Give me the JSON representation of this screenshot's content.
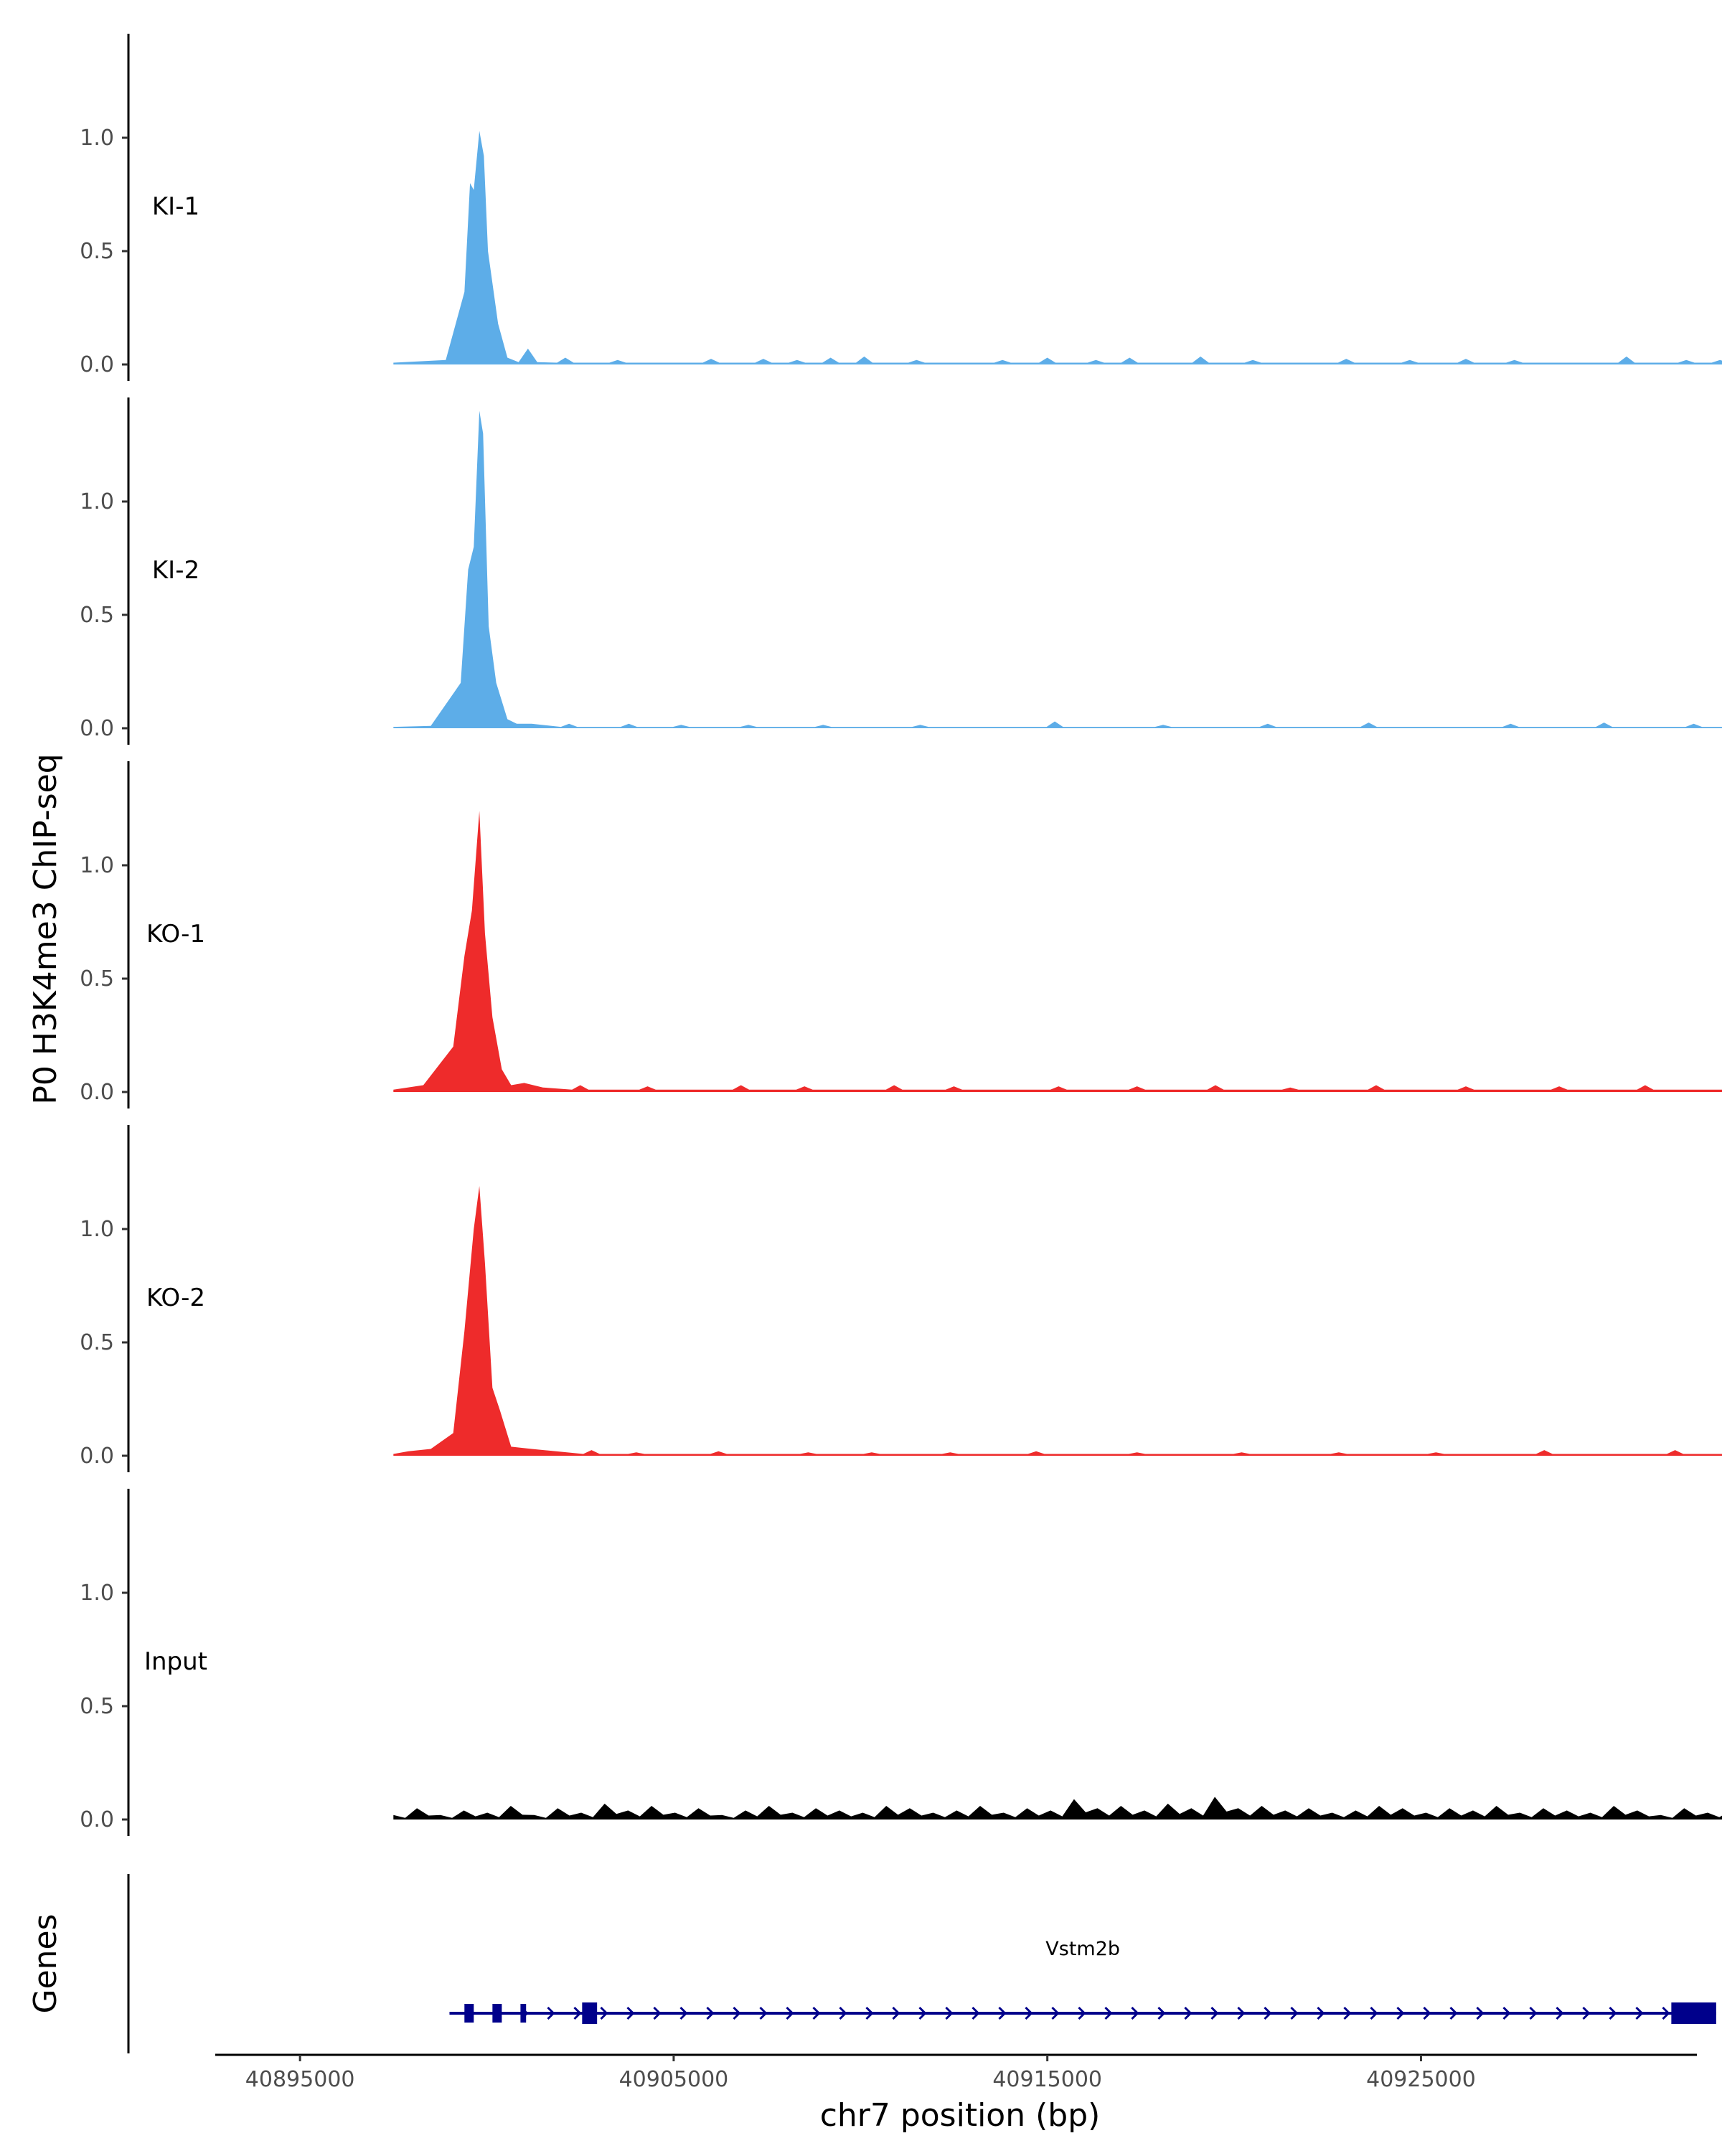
{
  "chart_data": {
    "type": "area",
    "title": "",
    "ylabel": "P0 H3K4me3 ChIP-seq",
    "xlabel": "chr7 position (bp)",
    "xlim": [
      40893000,
      40932000
    ],
    "x_ticks": [
      40895000,
      40905000,
      40915000,
      40925000
    ],
    "x_tick_labels": [
      "40895000",
      "40905000",
      "40915000",
      "40925000"
    ],
    "ylim": [
      0,
      1.45
    ],
    "y_ticks": [
      0.0,
      0.5,
      1.0
    ],
    "y_tick_labels": [
      "0.0",
      "0.5",
      "1.0"
    ],
    "data_range": [
      40897500,
      40933300
    ],
    "tracks": [
      {
        "name": "KI-1",
        "color": "#5dade8",
        "baseline": 0.008,
        "peaks": [
          {
            "x": 40898900,
            "y": 0.02
          },
          {
            "x": 40899400,
            "y": 0.32
          },
          {
            "x": 40899550,
            "y": 0.8
          },
          {
            "x": 40899650,
            "y": 0.77
          },
          {
            "x": 40899800,
            "y": 1.03
          },
          {
            "x": 40899920,
            "y": 0.92
          },
          {
            "x": 40900030,
            "y": 0.5
          },
          {
            "x": 40900300,
            "y": 0.18
          },
          {
            "x": 40900550,
            "y": 0.03
          },
          {
            "x": 40900850,
            "y": 0.01
          },
          {
            "x": 40901100,
            "y": 0.07
          },
          {
            "x": 40901350,
            "y": 0.01
          }
        ],
        "blips": [
          {
            "x": 40902100,
            "y": 0.03
          },
          {
            "x": 40903500,
            "y": 0.02
          },
          {
            "x": 40906000,
            "y": 0.025
          },
          {
            "x": 40907400,
            "y": 0.025
          },
          {
            "x": 40908300,
            "y": 0.02
          },
          {
            "x": 40909200,
            "y": 0.03
          },
          {
            "x": 40910100,
            "y": 0.035
          },
          {
            "x": 40911500,
            "y": 0.02
          },
          {
            "x": 40913800,
            "y": 0.02
          },
          {
            "x": 40915000,
            "y": 0.03
          },
          {
            "x": 40916300,
            "y": 0.02
          },
          {
            "x": 40917200,
            "y": 0.03
          },
          {
            "x": 40919100,
            "y": 0.035
          },
          {
            "x": 40920500,
            "y": 0.02
          },
          {
            "x": 40923000,
            "y": 0.025
          },
          {
            "x": 40924700,
            "y": 0.02
          },
          {
            "x": 40926200,
            "y": 0.025
          },
          {
            "x": 40927500,
            "y": 0.02
          },
          {
            "x": 40930500,
            "y": 0.035
          },
          {
            "x": 40932100,
            "y": 0.02
          },
          {
            "x": 40933000,
            "y": 0.02
          }
        ]
      },
      {
        "name": "KI-2",
        "color": "#5dade8",
        "baseline": 0.006,
        "peaks": [
          {
            "x": 40898500,
            "y": 0.01
          },
          {
            "x": 40899300,
            "y": 0.2
          },
          {
            "x": 40899500,
            "y": 0.7
          },
          {
            "x": 40899650,
            "y": 0.8
          },
          {
            "x": 40899800,
            "y": 1.4
          },
          {
            "x": 40899900,
            "y": 1.3
          },
          {
            "x": 40900050,
            "y": 0.45
          },
          {
            "x": 40900250,
            "y": 0.2
          },
          {
            "x": 40900550,
            "y": 0.04
          },
          {
            "x": 40900800,
            "y": 0.02
          },
          {
            "x": 40901200,
            "y": 0.02
          }
        ],
        "blips": [
          {
            "x": 40902200,
            "y": 0.02
          },
          {
            "x": 40903800,
            "y": 0.02
          },
          {
            "x": 40905200,
            "y": 0.015
          },
          {
            "x": 40907000,
            "y": 0.015
          },
          {
            "x": 40909000,
            "y": 0.015
          },
          {
            "x": 40911600,
            "y": 0.015
          },
          {
            "x": 40915200,
            "y": 0.03
          },
          {
            "x": 40918100,
            "y": 0.015
          },
          {
            "x": 40920900,
            "y": 0.02
          },
          {
            "x": 40923600,
            "y": 0.025
          },
          {
            "x": 40927400,
            "y": 0.02
          },
          {
            "x": 40929900,
            "y": 0.025
          },
          {
            "x": 40932300,
            "y": 0.02
          }
        ]
      },
      {
        "name": "KO-1",
        "color": "#ee2b2b",
        "baseline": 0.01,
        "peaks": [
          {
            "x": 40898300,
            "y": 0.03
          },
          {
            "x": 40899100,
            "y": 0.2
          },
          {
            "x": 40899400,
            "y": 0.6
          },
          {
            "x": 40899600,
            "y": 0.8
          },
          {
            "x": 40899800,
            "y": 1.24
          },
          {
            "x": 40899950,
            "y": 0.7
          },
          {
            "x": 40900150,
            "y": 0.33
          },
          {
            "x": 40900400,
            "y": 0.1
          },
          {
            "x": 40900650,
            "y": 0.03
          },
          {
            "x": 40901000,
            "y": 0.04
          },
          {
            "x": 40901500,
            "y": 0.02
          }
        ],
        "blips": [
          {
            "x": 40902500,
            "y": 0.03
          },
          {
            "x": 40904300,
            "y": 0.025
          },
          {
            "x": 40906800,
            "y": 0.03
          },
          {
            "x": 40908500,
            "y": 0.025
          },
          {
            "x": 40910900,
            "y": 0.03
          },
          {
            "x": 40912500,
            "y": 0.025
          },
          {
            "x": 40915300,
            "y": 0.025
          },
          {
            "x": 40917400,
            "y": 0.025
          },
          {
            "x": 40919500,
            "y": 0.03
          },
          {
            "x": 40921500,
            "y": 0.02
          },
          {
            "x": 40923800,
            "y": 0.03
          },
          {
            "x": 40926200,
            "y": 0.025
          },
          {
            "x": 40928700,
            "y": 0.025
          },
          {
            "x": 40931000,
            "y": 0.03
          }
        ]
      },
      {
        "name": "KO-2",
        "color": "#ee2b2b",
        "baseline": 0.008,
        "peaks": [
          {
            "x": 40897900,
            "y": 0.02
          },
          {
            "x": 40898500,
            "y": 0.03
          },
          {
            "x": 40899100,
            "y": 0.1
          },
          {
            "x": 40899400,
            "y": 0.55
          },
          {
            "x": 40899650,
            "y": 1.0
          },
          {
            "x": 40899800,
            "y": 1.19
          },
          {
            "x": 40899950,
            "y": 0.85
          },
          {
            "x": 40900150,
            "y": 0.3
          },
          {
            "x": 40900350,
            "y": 0.2
          },
          {
            "x": 40900650,
            "y": 0.04
          },
          {
            "x": 40901200,
            "y": 0.03
          }
        ],
        "blips": [
          {
            "x": 40902800,
            "y": 0.025
          },
          {
            "x": 40904000,
            "y": 0.015
          },
          {
            "x": 40906200,
            "y": 0.02
          },
          {
            "x": 40908600,
            "y": 0.015
          },
          {
            "x": 40910300,
            "y": 0.015
          },
          {
            "x": 40912400,
            "y": 0.015
          },
          {
            "x": 40914700,
            "y": 0.02
          },
          {
            "x": 40917400,
            "y": 0.015
          },
          {
            "x": 40920200,
            "y": 0.015
          },
          {
            "x": 40922800,
            "y": 0.015
          },
          {
            "x": 40925400,
            "y": 0.015
          },
          {
            "x": 40928300,
            "y": 0.025
          },
          {
            "x": 40931800,
            "y": 0.025
          }
        ]
      },
      {
        "name": "Input",
        "color": "#000000",
        "baseline": 0.02,
        "noise": [
          0.02,
          0.05,
          0.02,
          0.04,
          0.03,
          0.06,
          0.02,
          0.05,
          0.03,
          0.07,
          0.04,
          0.06,
          0.03,
          0.05,
          0.02,
          0.04,
          0.06,
          0.03,
          0.05,
          0.04,
          0.03,
          0.06,
          0.05,
          0.03,
          0.04,
          0.06,
          0.03,
          0.05,
          0.04,
          0.09,
          0.05,
          0.06,
          0.04,
          0.07,
          0.05,
          0.1,
          0.05,
          0.06,
          0.04,
          0.05,
          0.03,
          0.04,
          0.06,
          0.05,
          0.03,
          0.05,
          0.04,
          0.06,
          0.03,
          0.05,
          0.04,
          0.03,
          0.06,
          0.04,
          0.02,
          0.05,
          0.03,
          0.04
        ]
      }
    ],
    "genes_track": {
      "label": "Genes",
      "gene_name": "Vstm2b",
      "color": "#00008b",
      "start": 40899000,
      "end": 40932900,
      "strand": "+",
      "exons": [
        {
          "start": 40899400,
          "end": 40899650
        },
        {
          "start": 40900150,
          "end": 40900400
        },
        {
          "start": 40900900,
          "end": 40901050
        },
        {
          "start": 40902550,
          "end": 40902950
        },
        {
          "start": 40931700,
          "end": 40932900
        }
      ]
    }
  }
}
